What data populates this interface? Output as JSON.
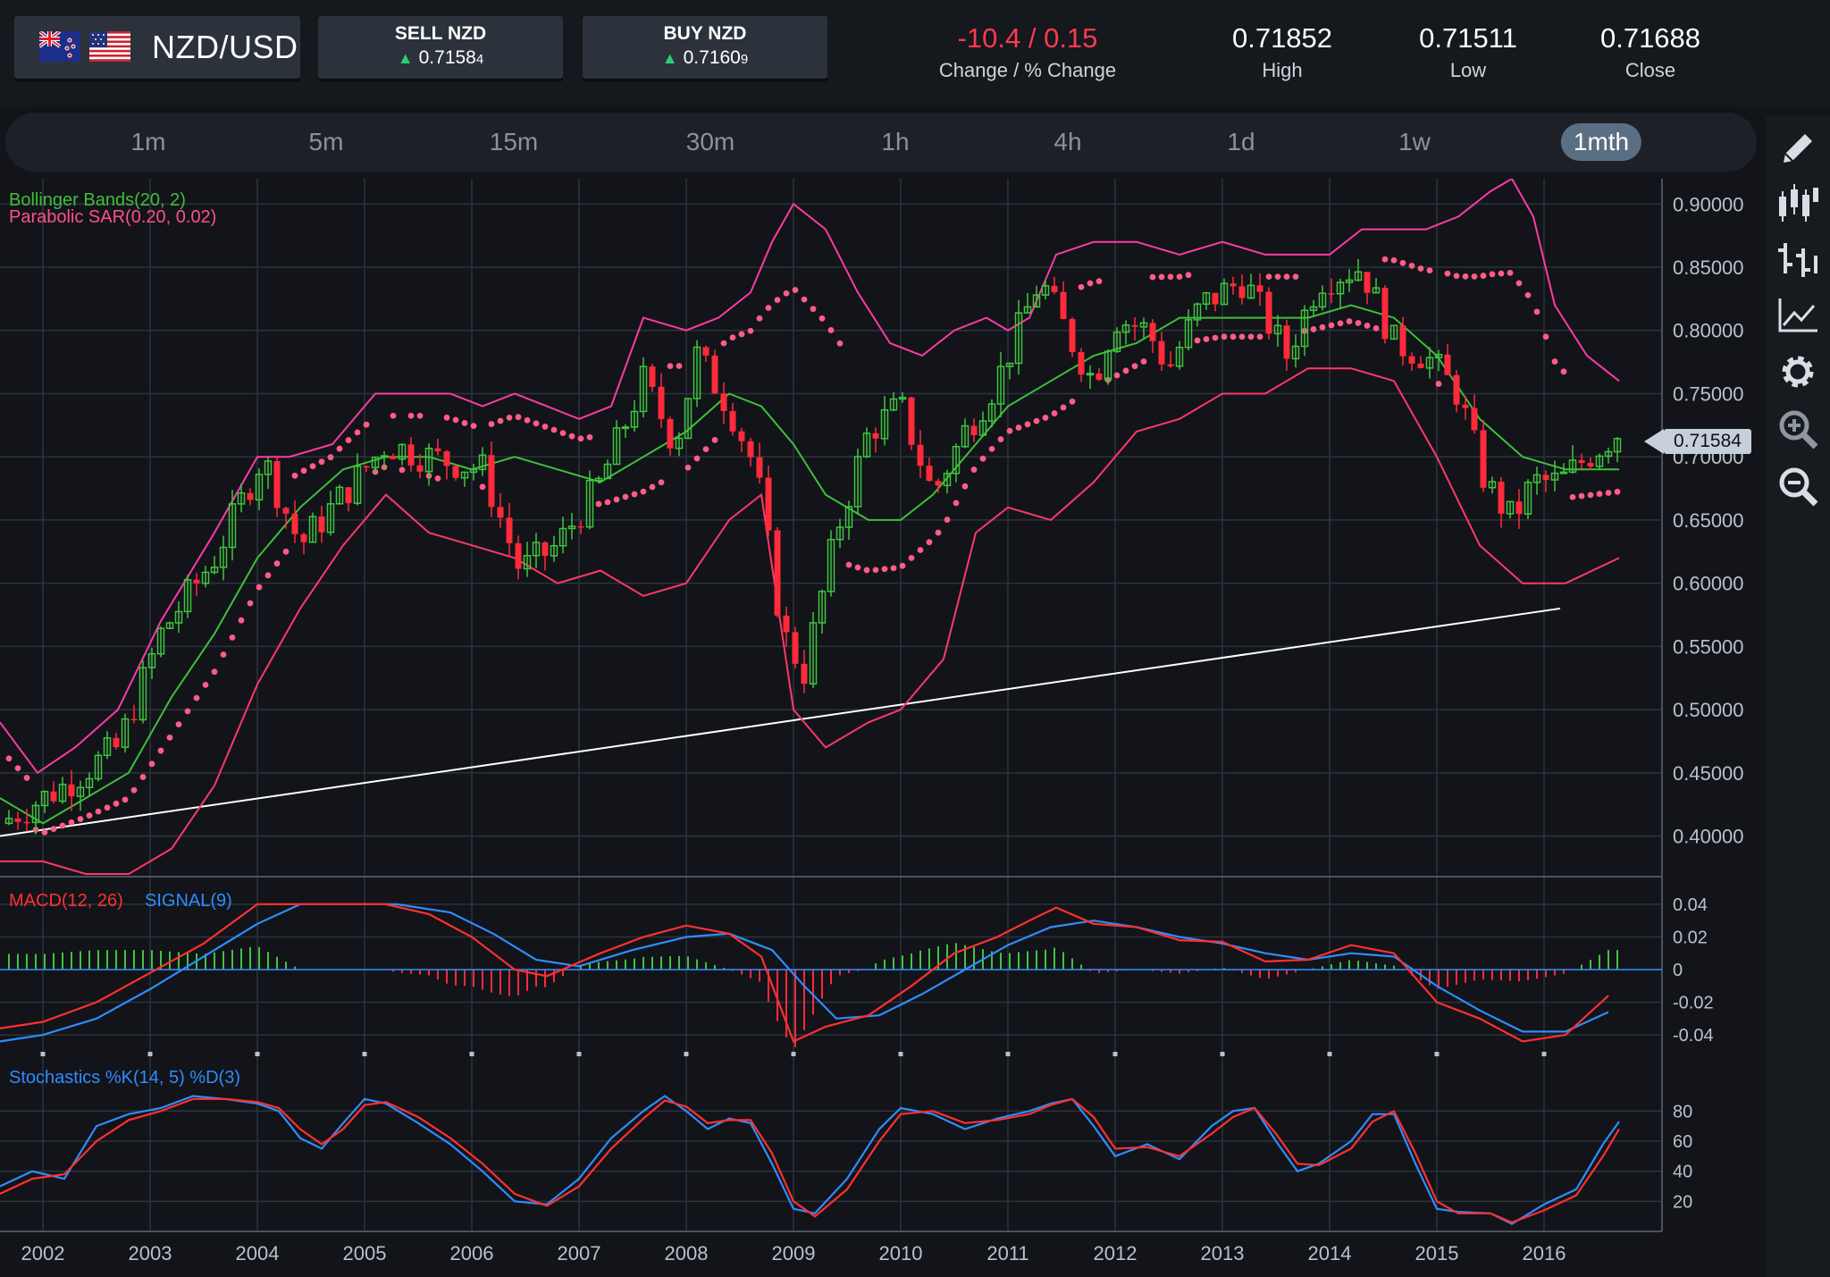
{
  "header": {
    "pair": "NZD/USD",
    "flags": [
      "new-zealand-flag",
      "usa-flag"
    ],
    "sell": {
      "label": "SELL NZD",
      "price_main": "0.7158",
      "price_pip": "4"
    },
    "buy": {
      "label": "BUY NZD",
      "price_main": "0.7160",
      "price_pip": "9"
    },
    "change": {
      "value": "-10.4 / 0.15",
      "label": "Change / % Change"
    },
    "high": {
      "value": "0.71852",
      "label": "High"
    },
    "low": {
      "value": "0.71511",
      "label": "Low"
    },
    "close": {
      "value": "0.71688",
      "label": "Close"
    }
  },
  "timeframes": [
    "1m",
    "5m",
    "15m",
    "30m",
    "1h",
    "4h",
    "1d",
    "1w",
    "1mth"
  ],
  "active_timeframe": "1mth",
  "toolbar": [
    "pencil-icon",
    "candlestick-icon",
    "ohlc-bars-icon",
    "line-chart-icon",
    "settings-gear-icon",
    "zoom-in-icon",
    "zoom-out-icon"
  ],
  "colors": {
    "up": "#3fc43f",
    "down": "#ff2a3a",
    "bb_outer": "#ff3aa6",
    "bb_lower": "#ff3868",
    "bb_mid": "#3fbf3a",
    "sar": "#ff5c86",
    "macd": "#ff3030",
    "signal": "#2f8cff",
    "stoch_k": "#2f8cff",
    "stoch_d": "#ff3030"
  },
  "chart_data": {
    "type": "candlestick",
    "title": "",
    "indicator_labels": {
      "bollinger": "Bollinger Bands(20, 2)",
      "sar": "Parabolic SAR(0.20, 0.02)",
      "macd": "MACD(12, 26)",
      "signal": "SIGNAL(9)",
      "stochastics": "Stochastics %K(14, 5) %D(3)"
    },
    "x_axis": {
      "labels": [
        "2002",
        "2003",
        "2004",
        "2005",
        "2006",
        "2007",
        "2008",
        "2009",
        "2010",
        "2011",
        "2012",
        "2013",
        "2014",
        "2015",
        "2016"
      ],
      "range": [
        2001.6,
        2017.1
      ]
    },
    "price_axis": {
      "ticks": [
        "0.90000",
        "0.85000",
        "0.80000",
        "0.75000",
        "0.70000",
        "0.65000",
        "0.60000",
        "0.55000",
        "0.50000",
        "0.45000",
        "0.40000"
      ],
      "range": [
        0.37,
        0.92
      ]
    },
    "current_price": "0.71584",
    "close_anchors": [
      [
        2001.6,
        0.41
      ],
      [
        2002.2,
        0.44
      ],
      [
        2002.7,
        0.47
      ],
      [
        2003.1,
        0.56
      ],
      [
        2003.6,
        0.62
      ],
      [
        2004.05,
        0.7
      ],
      [
        2004.4,
        0.63
      ],
      [
        2004.8,
        0.67
      ],
      [
        2005.2,
        0.71
      ],
      [
        2005.6,
        0.7
      ],
      [
        2006.1,
        0.69
      ],
      [
        2006.45,
        0.61
      ],
      [
        2006.8,
        0.63
      ],
      [
        2007.2,
        0.68
      ],
      [
        2007.6,
        0.76
      ],
      [
        2007.9,
        0.71
      ],
      [
        2008.1,
        0.78
      ],
      [
        2008.4,
        0.74
      ],
      [
        2008.65,
        0.69
      ],
      [
        2008.9,
        0.56
      ],
      [
        2009.1,
        0.53
      ],
      [
        2009.4,
        0.64
      ],
      [
        2009.7,
        0.72
      ],
      [
        2010.0,
        0.74
      ],
      [
        2010.3,
        0.67
      ],
      [
        2010.6,
        0.72
      ],
      [
        2010.9,
        0.76
      ],
      [
        2011.3,
        0.84
      ],
      [
        2011.6,
        0.79
      ],
      [
        2011.8,
        0.76
      ],
      [
        2012.0,
        0.81
      ],
      [
        2012.3,
        0.8
      ],
      [
        2012.5,
        0.77
      ],
      [
        2012.8,
        0.82
      ],
      [
        2013.2,
        0.84
      ],
      [
        2013.6,
        0.78
      ],
      [
        2013.9,
        0.84
      ],
      [
        2014.3,
        0.85
      ],
      [
        2014.6,
        0.79
      ],
      [
        2014.9,
        0.78
      ],
      [
        2015.2,
        0.75
      ],
      [
        2015.45,
        0.68
      ],
      [
        2015.7,
        0.65
      ],
      [
        2015.9,
        0.68
      ],
      [
        2016.15,
        0.68
      ],
      [
        2016.4,
        0.7
      ],
      [
        2016.7,
        0.72
      ]
    ],
    "bollinger_upper": [
      [
        2001.6,
        0.49
      ],
      [
        2001.95,
        0.45
      ],
      [
        2002.3,
        0.47
      ],
      [
        2002.7,
        0.5
      ],
      [
        2003.1,
        0.57
      ],
      [
        2003.6,
        0.64
      ],
      [
        2004.0,
        0.7
      ],
      [
        2004.3,
        0.7
      ],
      [
        2004.7,
        0.71
      ],
      [
        2005.1,
        0.75
      ],
      [
        2005.4,
        0.75
      ],
      [
        2005.8,
        0.75
      ],
      [
        2006.1,
        0.74
      ],
      [
        2006.4,
        0.75
      ],
      [
        2006.7,
        0.74
      ],
      [
        2007.0,
        0.73
      ],
      [
        2007.3,
        0.74
      ],
      [
        2007.6,
        0.81
      ],
      [
        2008.0,
        0.8
      ],
      [
        2008.3,
        0.81
      ],
      [
        2008.6,
        0.83
      ],
      [
        2008.8,
        0.87
      ],
      [
        2009.0,
        0.9
      ],
      [
        2009.3,
        0.88
      ],
      [
        2009.6,
        0.83
      ],
      [
        2009.9,
        0.79
      ],
      [
        2010.2,
        0.78
      ],
      [
        2010.5,
        0.8
      ],
      [
        2010.8,
        0.81
      ],
      [
        2011.0,
        0.8
      ],
      [
        2011.2,
        0.81
      ],
      [
        2011.45,
        0.86
      ],
      [
        2011.8,
        0.87
      ],
      [
        2012.2,
        0.87
      ],
      [
        2012.6,
        0.86
      ],
      [
        2013.0,
        0.87
      ],
      [
        2013.4,
        0.86
      ],
      [
        2013.8,
        0.86
      ],
      [
        2014.0,
        0.86
      ],
      [
        2014.3,
        0.88
      ],
      [
        2014.6,
        0.88
      ],
      [
        2014.9,
        0.88
      ],
      [
        2015.2,
        0.89
      ],
      [
        2015.5,
        0.91
      ],
      [
        2015.7,
        0.92
      ],
      [
        2015.9,
        0.89
      ],
      [
        2016.1,
        0.82
      ],
      [
        2016.4,
        0.78
      ],
      [
        2016.7,
        0.76
      ]
    ],
    "bollinger_mid": [
      [
        2001.6,
        0.43
      ],
      [
        2002.0,
        0.41
      ],
      [
        2002.4,
        0.43
      ],
      [
        2002.8,
        0.45
      ],
      [
        2003.2,
        0.51
      ],
      [
        2003.6,
        0.56
      ],
      [
        2004.0,
        0.62
      ],
      [
        2004.4,
        0.66
      ],
      [
        2004.8,
        0.69
      ],
      [
        2005.2,
        0.7
      ],
      [
        2005.6,
        0.7
      ],
      [
        2006.0,
        0.69
      ],
      [
        2006.4,
        0.7
      ],
      [
        2006.8,
        0.69
      ],
      [
        2007.2,
        0.68
      ],
      [
        2007.6,
        0.7
      ],
      [
        2008.0,
        0.72
      ],
      [
        2008.4,
        0.75
      ],
      [
        2008.7,
        0.74
      ],
      [
        2009.0,
        0.71
      ],
      [
        2009.3,
        0.67
      ],
      [
        2009.7,
        0.65
      ],
      [
        2010.0,
        0.65
      ],
      [
        2010.3,
        0.67
      ],
      [
        2010.7,
        0.71
      ],
      [
        2011.0,
        0.74
      ],
      [
        2011.4,
        0.76
      ],
      [
        2011.8,
        0.78
      ],
      [
        2012.2,
        0.79
      ],
      [
        2012.6,
        0.81
      ],
      [
        2013.0,
        0.81
      ],
      [
        2013.4,
        0.81
      ],
      [
        2013.8,
        0.81
      ],
      [
        2014.2,
        0.82
      ],
      [
        2014.6,
        0.81
      ],
      [
        2015.0,
        0.78
      ],
      [
        2015.4,
        0.73
      ],
      [
        2015.8,
        0.7
      ],
      [
        2016.2,
        0.69
      ],
      [
        2016.7,
        0.69
      ]
    ],
    "bollinger_lower": [
      [
        2001.6,
        0.38
      ],
      [
        2002.0,
        0.38
      ],
      [
        2002.4,
        0.37
      ],
      [
        2002.8,
        0.37
      ],
      [
        2003.2,
        0.39
      ],
      [
        2003.6,
        0.44
      ],
      [
        2004.0,
        0.52
      ],
      [
        2004.4,
        0.58
      ],
      [
        2004.8,
        0.63
      ],
      [
        2005.2,
        0.67
      ],
      [
        2005.6,
        0.64
      ],
      [
        2006.0,
        0.63
      ],
      [
        2006.4,
        0.62
      ],
      [
        2006.8,
        0.6
      ],
      [
        2007.2,
        0.61
      ],
      [
        2007.6,
        0.59
      ],
      [
        2008.0,
        0.6
      ],
      [
        2008.4,
        0.65
      ],
      [
        2008.7,
        0.67
      ],
      [
        2009.0,
        0.5
      ],
      [
        2009.3,
        0.47
      ],
      [
        2009.7,
        0.49
      ],
      [
        2010.0,
        0.5
      ],
      [
        2010.4,
        0.54
      ],
      [
        2010.7,
        0.64
      ],
      [
        2011.0,
        0.66
      ],
      [
        2011.4,
        0.65
      ],
      [
        2011.8,
        0.68
      ],
      [
        2012.2,
        0.72
      ],
      [
        2012.6,
        0.73
      ],
      [
        2013.0,
        0.75
      ],
      [
        2013.4,
        0.75
      ],
      [
        2013.8,
        0.77
      ],
      [
        2014.2,
        0.77
      ],
      [
        2014.6,
        0.76
      ],
      [
        2015.0,
        0.7
      ],
      [
        2015.4,
        0.63
      ],
      [
        2015.8,
        0.6
      ],
      [
        2016.2,
        0.6
      ],
      [
        2016.7,
        0.62
      ]
    ],
    "trendline": [
      [
        2001.6,
        0.4
      ],
      [
        2016.15,
        0.58
      ]
    ],
    "macd_axis": {
      "ticks": [
        "0.04",
        "0.02",
        "0",
        "-0.02",
        "-0.04"
      ],
      "range": [
        -0.052,
        0.052
      ]
    },
    "macd": [
      [
        2001.6,
        -0.036
      ],
      [
        2002.0,
        -0.032
      ],
      [
        2002.5,
        -0.02
      ],
      [
        2003.0,
        -0.002
      ],
      [
        2003.5,
        0.016
      ],
      [
        2004.0,
        0.04
      ],
      [
        2004.3,
        0.04
      ],
      [
        2004.8,
        0.04
      ],
      [
        2005.2,
        0.04
      ],
      [
        2005.6,
        0.034
      ],
      [
        2006.0,
        0.02
      ],
      [
        2006.4,
        0.0
      ],
      [
        2006.7,
        -0.004
      ],
      [
        2007.2,
        0.01
      ],
      [
        2007.6,
        0.02
      ],
      [
        2008.0,
        0.027
      ],
      [
        2008.4,
        0.022
      ],
      [
        2008.7,
        0.008
      ],
      [
        2009.0,
        -0.044
      ],
      [
        2009.3,
        -0.035
      ],
      [
        2009.7,
        -0.028
      ],
      [
        2010.1,
        -0.01
      ],
      [
        2010.5,
        0.01
      ],
      [
        2010.9,
        0.02
      ],
      [
        2011.2,
        0.03
      ],
      [
        2011.45,
        0.038
      ],
      [
        2011.8,
        0.028
      ],
      [
        2012.2,
        0.026
      ],
      [
        2012.6,
        0.018
      ],
      [
        2013.0,
        0.017
      ],
      [
        2013.4,
        0.005
      ],
      [
        2013.8,
        0.006
      ],
      [
        2014.2,
        0.015
      ],
      [
        2014.6,
        0.01
      ],
      [
        2015.0,
        -0.02
      ],
      [
        2015.4,
        -0.03
      ],
      [
        2015.8,
        -0.044
      ],
      [
        2016.2,
        -0.04
      ],
      [
        2016.6,
        -0.016
      ]
    ],
    "signal": [
      [
        2001.6,
        -0.044
      ],
      [
        2002.0,
        -0.04
      ],
      [
        2002.5,
        -0.03
      ],
      [
        2003.0,
        -0.012
      ],
      [
        2003.5,
        0.008
      ],
      [
        2004.0,
        0.028
      ],
      [
        2004.4,
        0.04
      ],
      [
        2004.9,
        0.04
      ],
      [
        2005.3,
        0.04
      ],
      [
        2005.8,
        0.035
      ],
      [
        2006.2,
        0.022
      ],
      [
        2006.6,
        0.006
      ],
      [
        2007.0,
        0.002
      ],
      [
        2007.5,
        0.012
      ],
      [
        2008.0,
        0.02
      ],
      [
        2008.4,
        0.022
      ],
      [
        2008.8,
        0.012
      ],
      [
        2009.1,
        -0.01
      ],
      [
        2009.4,
        -0.03
      ],
      [
        2009.8,
        -0.028
      ],
      [
        2010.2,
        -0.015
      ],
      [
        2010.6,
        0.0
      ],
      [
        2011.0,
        0.015
      ],
      [
        2011.4,
        0.026
      ],
      [
        2011.8,
        0.03
      ],
      [
        2012.2,
        0.026
      ],
      [
        2012.6,
        0.02
      ],
      [
        2013.0,
        0.016
      ],
      [
        2013.4,
        0.01
      ],
      [
        2013.8,
        0.006
      ],
      [
        2014.2,
        0.01
      ],
      [
        2014.6,
        0.008
      ],
      [
        2015.0,
        -0.01
      ],
      [
        2015.4,
        -0.025
      ],
      [
        2015.8,
        -0.038
      ],
      [
        2016.2,
        -0.038
      ],
      [
        2016.6,
        -0.026
      ]
    ],
    "stoch_axis": {
      "ticks": [
        "80",
        "60",
        "40",
        "20"
      ],
      "range": [
        0,
        100
      ]
    },
    "stoch_k": [
      [
        2001.6,
        30
      ],
      [
        2001.9,
        40
      ],
      [
        2002.2,
        35
      ],
      [
        2002.5,
        70
      ],
      [
        2002.8,
        78
      ],
      [
        2003.1,
        82
      ],
      [
        2003.4,
        90
      ],
      [
        2003.7,
        88
      ],
      [
        2004.0,
        85
      ],
      [
        2004.2,
        80
      ],
      [
        2004.4,
        62
      ],
      [
        2004.6,
        55
      ],
      [
        2004.8,
        72
      ],
      [
        2005.0,
        88
      ],
      [
        2005.2,
        85
      ],
      [
        2005.5,
        72
      ],
      [
        2005.8,
        58
      ],
      [
        2006.1,
        40
      ],
      [
        2006.4,
        20
      ],
      [
        2006.7,
        18
      ],
      [
        2007.0,
        35
      ],
      [
        2007.3,
        62
      ],
      [
        2007.6,
        80
      ],
      [
        2007.8,
        90
      ],
      [
        2008.0,
        80
      ],
      [
        2008.2,
        68
      ],
      [
        2008.4,
        75
      ],
      [
        2008.6,
        72
      ],
      [
        2008.8,
        45
      ],
      [
        2009.0,
        15
      ],
      [
        2009.2,
        12
      ],
      [
        2009.5,
        35
      ],
      [
        2009.8,
        68
      ],
      [
        2010.0,
        82
      ],
      [
        2010.3,
        78
      ],
      [
        2010.6,
        68
      ],
      [
        2010.9,
        75
      ],
      [
        2011.2,
        80
      ],
      [
        2011.4,
        85
      ],
      [
        2011.6,
        88
      ],
      [
        2011.8,
        70
      ],
      [
        2012.0,
        50
      ],
      [
        2012.3,
        58
      ],
      [
        2012.6,
        48
      ],
      [
        2012.9,
        70
      ],
      [
        2013.1,
        80
      ],
      [
        2013.3,
        82
      ],
      [
        2013.5,
        60
      ],
      [
        2013.7,
        40
      ],
      [
        2013.9,
        45
      ],
      [
        2014.2,
        60
      ],
      [
        2014.4,
        78
      ],
      [
        2014.6,
        78
      ],
      [
        2014.8,
        45
      ],
      [
        2015.0,
        15
      ],
      [
        2015.2,
        13
      ],
      [
        2015.5,
        12
      ],
      [
        2015.7,
        5
      ],
      [
        2016.0,
        18
      ],
      [
        2016.3,
        28
      ],
      [
        2016.55,
        58
      ],
      [
        2016.7,
        73
      ]
    ],
    "stoch_d": [
      [
        2001.6,
        25
      ],
      [
        2001.9,
        35
      ],
      [
        2002.2,
        38
      ],
      [
        2002.5,
        60
      ],
      [
        2002.8,
        74
      ],
      [
        2003.1,
        80
      ],
      [
        2003.4,
        88
      ],
      [
        2003.7,
        88
      ],
      [
        2004.0,
        86
      ],
      [
        2004.2,
        82
      ],
      [
        2004.4,
        68
      ],
      [
        2004.6,
        58
      ],
      [
        2004.8,
        68
      ],
      [
        2005.0,
        84
      ],
      [
        2005.2,
        86
      ],
      [
        2005.5,
        76
      ],
      [
        2005.8,
        62
      ],
      [
        2006.1,
        45
      ],
      [
        2006.4,
        25
      ],
      [
        2006.7,
        17
      ],
      [
        2007.0,
        30
      ],
      [
        2007.3,
        55
      ],
      [
        2007.6,
        75
      ],
      [
        2007.8,
        87
      ],
      [
        2008.0,
        83
      ],
      [
        2008.2,
        72
      ],
      [
        2008.4,
        74
      ],
      [
        2008.6,
        74
      ],
      [
        2008.8,
        52
      ],
      [
        2009.0,
        20
      ],
      [
        2009.2,
        10
      ],
      [
        2009.5,
        28
      ],
      [
        2009.8,
        60
      ],
      [
        2010.0,
        78
      ],
      [
        2010.3,
        80
      ],
      [
        2010.6,
        72
      ],
      [
        2010.9,
        74
      ],
      [
        2011.2,
        78
      ],
      [
        2011.4,
        84
      ],
      [
        2011.6,
        88
      ],
      [
        2011.8,
        76
      ],
      [
        2012.0,
        55
      ],
      [
        2012.3,
        56
      ],
      [
        2012.6,
        50
      ],
      [
        2012.9,
        65
      ],
      [
        2013.1,
        76
      ],
      [
        2013.3,
        82
      ],
      [
        2013.5,
        65
      ],
      [
        2013.7,
        45
      ],
      [
        2013.9,
        44
      ],
      [
        2014.2,
        55
      ],
      [
        2014.4,
        73
      ],
      [
        2014.6,
        80
      ],
      [
        2014.8,
        52
      ],
      [
        2015.0,
        20
      ],
      [
        2015.2,
        12
      ],
      [
        2015.5,
        12
      ],
      [
        2015.7,
        6
      ],
      [
        2016.0,
        14
      ],
      [
        2016.3,
        24
      ],
      [
        2016.55,
        50
      ],
      [
        2016.7,
        68
      ]
    ]
  }
}
